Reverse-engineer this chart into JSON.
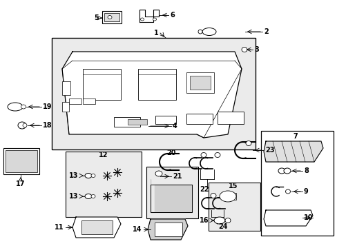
{
  "bg_color": "#ffffff",
  "figsize": [
    4.89,
    3.6
  ],
  "dpi": 100,
  "label_fs": 7.0,
  "label_fw": "bold"
}
